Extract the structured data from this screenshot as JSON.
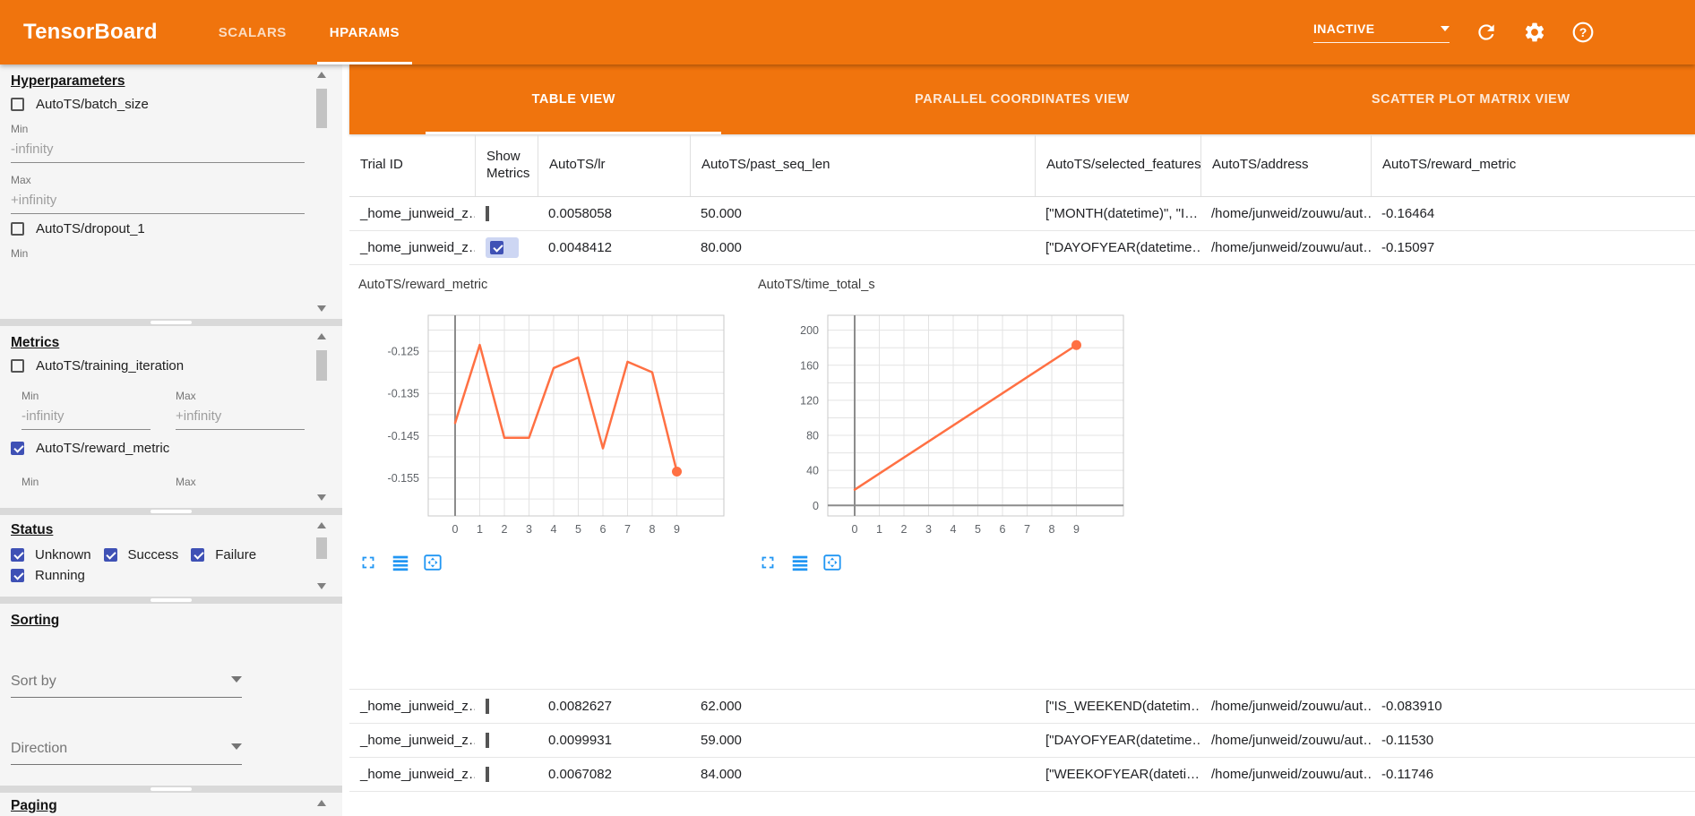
{
  "toolbar": {
    "title": "TensorBoard",
    "tabs": [
      {
        "label": "SCALARS",
        "active": false
      },
      {
        "label": "HPARAMS",
        "active": true
      }
    ],
    "runs_selector": {
      "value": "INACTIVE"
    },
    "icons": [
      "refresh-icon",
      "settings-icon",
      "help-icon"
    ],
    "bg_color": "#f0740d"
  },
  "sidebar": {
    "hyperparameters": {
      "heading": "Hyperparameters",
      "items": [
        {
          "label": "AutoTS/batch_size",
          "checked": false
        },
        {
          "label": "AutoTS/dropout_1",
          "checked": false
        }
      ],
      "min_label": "Min",
      "min_value": "-infinity",
      "max_label": "Max",
      "max_value": "+infinity",
      "clipped_label": "Min"
    },
    "metrics": {
      "heading": "Metrics",
      "items": [
        {
          "label": "AutoTS/training_iteration",
          "checked": false
        },
        {
          "label": "AutoTS/reward_metric",
          "checked": true
        }
      ],
      "min_label": "Min",
      "min_value": "-infinity",
      "max_label": "Max",
      "max_value": "+infinity",
      "clipped_min_label": "Min",
      "clipped_max_label": "Max"
    },
    "status": {
      "heading": "Status",
      "items": [
        {
          "label": "Unknown",
          "checked": true
        },
        {
          "label": "Success",
          "checked": true
        },
        {
          "label": "Failure",
          "checked": true
        },
        {
          "label": "Running",
          "checked": true
        }
      ]
    },
    "sorting": {
      "heading": "Sorting",
      "sort_by_placeholder": "Sort by",
      "direction_placeholder": "Direction"
    },
    "paging": {
      "heading": "Paging"
    }
  },
  "views": {
    "tabs": [
      {
        "label": "TABLE VIEW",
        "active": true
      },
      {
        "label": "PARALLEL COORDINATES VIEW",
        "active": false
      },
      {
        "label": "SCATTER PLOT MATRIX VIEW",
        "active": false
      }
    ]
  },
  "table": {
    "columns": [
      "Trial ID",
      "Show Metrics",
      "AutoTS/lr",
      "AutoTS/past_seq_len",
      "AutoTS/selected_features",
      "AutoTS/address",
      "AutoTS/reward_metric"
    ],
    "rows": [
      {
        "trial_id": "_home_junweid_z…",
        "show_metrics": false,
        "highlight": false,
        "values": [
          "0.0058058",
          "50.000",
          "[\"MONTH(datetime)\", \"I…",
          "/home/junweid/zouwu/aut…",
          "-0.16464"
        ]
      },
      {
        "trial_id": "_home_junweid_z…",
        "show_metrics": true,
        "highlight": true,
        "values": [
          "0.0048412",
          "80.000",
          "[\"DAYOFYEAR(datetime…",
          "/home/junweid/zouwu/aut…",
          "-0.15097"
        ]
      },
      {
        "trial_id": "_home_junweid_z…",
        "show_metrics": false,
        "highlight": false,
        "values": [
          "0.0082627",
          "62.000",
          "[\"IS_WEEKEND(datetim…",
          "/home/junweid/zouwu/aut…",
          "-0.083910"
        ]
      },
      {
        "trial_id": "_home_junweid_z…",
        "show_metrics": false,
        "highlight": false,
        "values": [
          "0.0099931",
          "59.000",
          "[\"DAYOFYEAR(datetime…",
          "/home/junweid/zouwu/aut…",
          "-0.11530"
        ]
      },
      {
        "trial_id": "_home_junweid_z…",
        "show_metrics": false,
        "highlight": false,
        "values": [
          "0.0067082",
          "84.000",
          "[\"WEEKOFYEAR(dateti…",
          "/home/junweid/zouwu/aut…",
          "-0.11746"
        ]
      }
    ],
    "expanded_row_index": 1
  },
  "chart_data": [
    {
      "type": "line",
      "title": "AutoTS/reward_metric",
      "x": [
        0,
        1,
        2,
        3,
        4,
        5,
        6,
        7,
        8,
        9
      ],
      "values": [
        -0.142,
        -0.1235,
        -0.1455,
        -0.1455,
        -0.129,
        -0.1265,
        -0.148,
        -0.1275,
        -0.13,
        -0.1535
      ],
      "xlabel": "",
      "ylabel": "",
      "xticks": [
        0,
        1,
        2,
        3,
        4,
        5,
        6,
        7,
        8,
        9
      ],
      "ylim": [
        -0.164,
        -0.1165
      ],
      "yticks": [
        -0.125,
        -0.135,
        -0.145,
        -0.155
      ],
      "ytick_labels": [
        "-0.125",
        "-0.135",
        "-0.145",
        "-0.155"
      ],
      "minor_step": 0.005,
      "line_color": "#ff7043",
      "end_marker": true,
      "grid": true,
      "zero_x_line": true,
      "zero_y_line": false,
      "legend": "none"
    },
    {
      "type": "line",
      "title": "AutoTS/time_total_s",
      "x": [
        0,
        9
      ],
      "values": [
        18,
        183
      ],
      "xlabel": "",
      "ylabel": "",
      "xticks": [
        0,
        1,
        2,
        3,
        4,
        5,
        6,
        7,
        8,
        9
      ],
      "ylim": [
        -12,
        217
      ],
      "yticks": [
        0,
        40,
        80,
        120,
        160,
        200
      ],
      "ytick_labels": [
        "0",
        "40",
        "80",
        "120",
        "160",
        "200"
      ],
      "minor_step": 20,
      "line_color": "#ff7043",
      "end_marker": true,
      "grid": true,
      "zero_x_line": true,
      "zero_y_line": true,
      "legend": "none"
    }
  ],
  "chart_controls": [
    "fullscreen-icon",
    "log-scale-icon",
    "fit-domain-icon"
  ],
  "colors": {
    "toolbar_orange": "#f0740d",
    "checkbox_indigo": "#3f51b5",
    "chart_line_orange": "#ff7043",
    "chart_control_blue": "#2196f3",
    "row_highlight": "#cdd6f3"
  }
}
